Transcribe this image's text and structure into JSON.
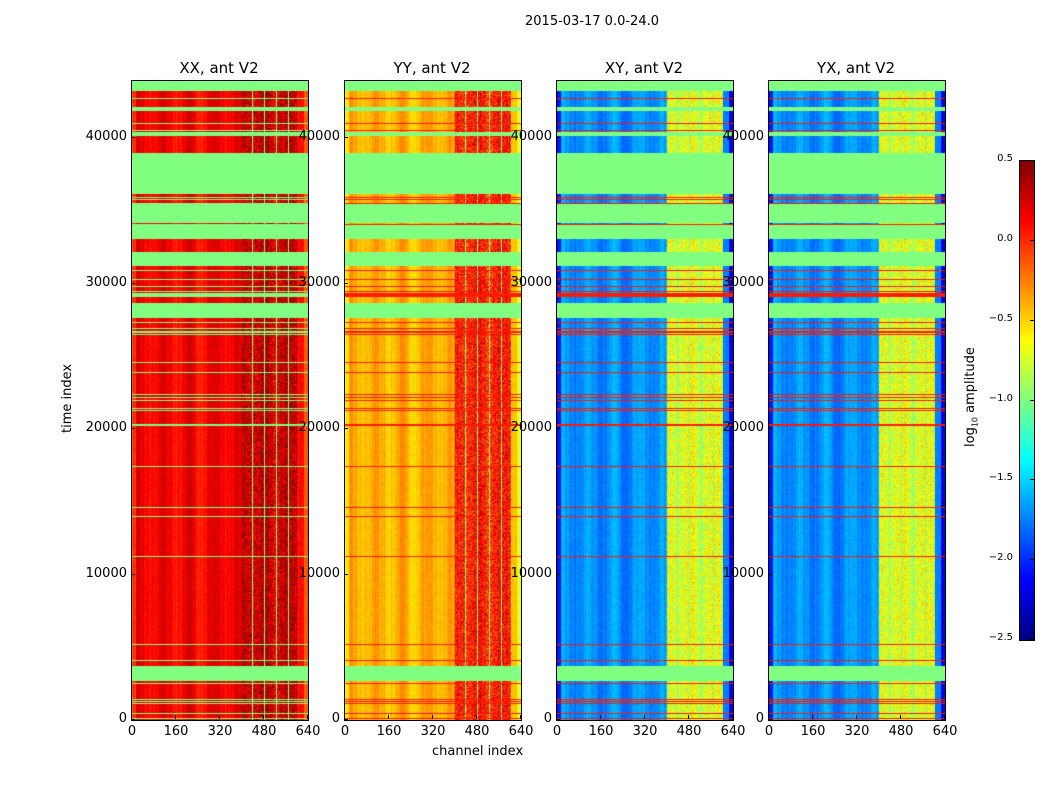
{
  "chart_data": {
    "type": "heatmap",
    "suptitle": "2015-03-17 0.0-24.0",
    "xlabel": "channel index",
    "ylabel": "time index",
    "xlim": [
      0,
      640
    ],
    "ylim": [
      0,
      43920
    ],
    "xticks": [
      "0",
      "160",
      "320",
      "480",
      "640"
    ],
    "xtick_values": [
      0,
      160,
      320,
      480,
      640
    ],
    "yticks": [
      "0",
      "10000",
      "20000",
      "30000",
      "40000"
    ],
    "ytick_values": [
      0,
      10000,
      20000,
      30000,
      40000
    ],
    "colormap": "jet",
    "clim": [
      -2.5,
      0.5
    ],
    "flagged_value": -1.0,
    "flagged_time_ranges": [
      [
        2680,
        3710
      ],
      [
        27630,
        28650
      ],
      [
        31200,
        32100
      ],
      [
        33060,
        34000
      ],
      [
        34160,
        35460
      ],
      [
        36150,
        38970
      ],
      [
        40100,
        40400
      ],
      [
        41800,
        42100
      ],
      [
        43200,
        43920
      ]
    ],
    "panels": [
      {
        "title": "XX, ant V2",
        "base_level": 0.15,
        "rfi_band_level": 0.3,
        "row_flag_color": "green"
      },
      {
        "title": "YY, ant V2",
        "base_level": -0.4,
        "rfi_band_level": 0.05,
        "row_flag_color": "red"
      },
      {
        "title": "XY, ant V2",
        "base_level": -1.7,
        "rfi_band_level": -0.7,
        "row_flag_color": "red"
      },
      {
        "title": "YX, ant V2",
        "base_level": -1.7,
        "rfi_band_level": -0.7,
        "row_flag_color": "red"
      }
    ],
    "rfi_channel_range": [
      400,
      600
    ],
    "colorbar": {
      "label": "log10 amplitude",
      "ticks": [
        "0.5",
        "0.0",
        "−0.5",
        "−1.0",
        "−1.5",
        "−2.0",
        "−2.5"
      ],
      "tick_values": [
        0.5,
        0,
        -0.5,
        -1,
        -1.5,
        -2,
        -2.5
      ]
    }
  }
}
